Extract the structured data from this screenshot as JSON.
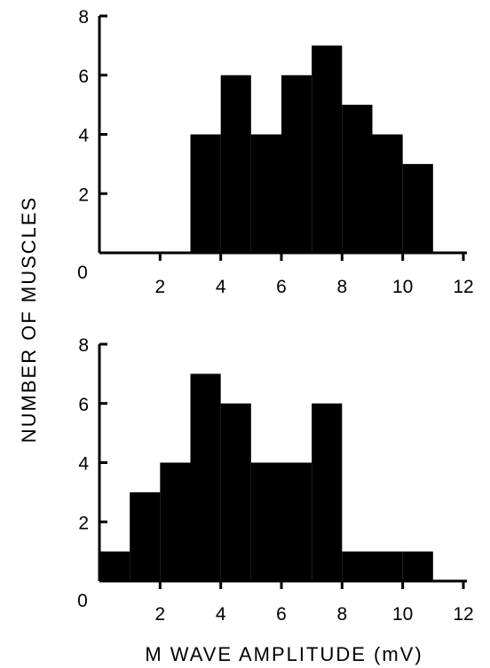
{
  "ylabel": "NUMBER OF MUSCLES",
  "xlabel": "M WAVE AMPLITUDE (mV)",
  "chart_data": [
    {
      "type": "bar",
      "panel": "top",
      "bin_width": 1,
      "x": [
        3,
        4,
        5,
        6,
        7,
        8,
        9,
        10
      ],
      "values": [
        4,
        6,
        4,
        6,
        7,
        5,
        4,
        3
      ],
      "xlim": [
        0,
        12
      ],
      "ylim": [
        0,
        8
      ],
      "xticks": [
        "2",
        "4",
        "6",
        "8",
        "10",
        "12"
      ],
      "yticks": [
        "2",
        "4",
        "6",
        "8"
      ],
      "origin_label": "0",
      "bar_color": "#000000"
    },
    {
      "type": "bar",
      "panel": "bottom",
      "bin_width": 1,
      "x": [
        0,
        1,
        2,
        3,
        4,
        5,
        6,
        7,
        8,
        9,
        10
      ],
      "values": [
        1,
        3,
        4,
        7,
        6,
        4,
        4,
        6,
        1,
        1,
        1
      ],
      "xlim": [
        0,
        12
      ],
      "ylim": [
        0,
        8
      ],
      "xticks": [
        "2",
        "4",
        "6",
        "8",
        "10",
        "12"
      ],
      "yticks": [
        "2",
        "4",
        "6",
        "8"
      ],
      "origin_label": "0",
      "bar_color": "#000000"
    }
  ]
}
